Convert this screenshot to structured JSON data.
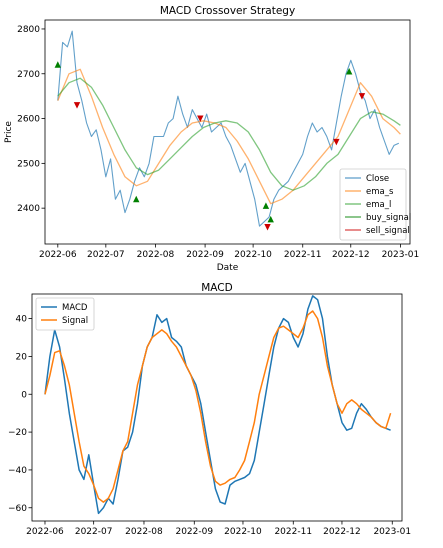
{
  "chart_data": [
    {
      "type": "line",
      "title": "MACD Crossover Strategy",
      "xlabel": "Date",
      "ylabel": "Price",
      "xlim": [
        "2022-05-24",
        "2023-01-07"
      ],
      "ylim": [
        2320,
        2820
      ],
      "x_ticks": [
        "2022-06",
        "2022-07",
        "2022-08",
        "2022-09",
        "2022-10",
        "2022-11",
        "2022-12",
        "2023-01"
      ],
      "y_ticks": [
        2400,
        2500,
        2600,
        2700,
        2800
      ],
      "legend_position": "lower-right",
      "grid": false,
      "colors": {
        "Close": "#1f77b4",
        "ema_s": "#ff7f0e",
        "ema_l": "#2ca02c",
        "buy_signal": "#008000",
        "sell_signal": "#cc0000"
      },
      "series": [
        {
          "name": "Close",
          "x": [
            "2022-06-01",
            "2022-06-04",
            "2022-06-07",
            "2022-06-10",
            "2022-06-13",
            "2022-06-16",
            "2022-06-19",
            "2022-06-22",
            "2022-06-25",
            "2022-06-28",
            "2022-07-01",
            "2022-07-04",
            "2022-07-07",
            "2022-07-10",
            "2022-07-13",
            "2022-07-16",
            "2022-07-19",
            "2022-07-22",
            "2022-07-25",
            "2022-07-28",
            "2022-07-31",
            "2022-08-03",
            "2022-08-06",
            "2022-08-09",
            "2022-08-12",
            "2022-08-15",
            "2022-08-18",
            "2022-08-21",
            "2022-08-24",
            "2022-08-27",
            "2022-08-30",
            "2022-09-02",
            "2022-09-05",
            "2022-09-08",
            "2022-09-11",
            "2022-09-14",
            "2022-09-17",
            "2022-09-20",
            "2022-09-23",
            "2022-09-26",
            "2022-09-29",
            "2022-10-02",
            "2022-10-05",
            "2022-10-08",
            "2022-10-11",
            "2022-10-14",
            "2022-10-17",
            "2022-10-20",
            "2022-10-23",
            "2022-10-26",
            "2022-10-29",
            "2022-11-01",
            "2022-11-04",
            "2022-11-07",
            "2022-11-10",
            "2022-11-13",
            "2022-11-16",
            "2022-11-19",
            "2022-11-22",
            "2022-11-25",
            "2022-11-28",
            "2022-12-01",
            "2022-12-04",
            "2022-12-07",
            "2022-12-10",
            "2022-12-13",
            "2022-12-16",
            "2022-12-19",
            "2022-12-22",
            "2022-12-25",
            "2022-12-28",
            "2022-12-31"
          ],
          "values": [
            2640,
            2770,
            2760,
            2795,
            2680,
            2640,
            2590,
            2560,
            2575,
            2530,
            2470,
            2510,
            2420,
            2440,
            2390,
            2420,
            2460,
            2490,
            2470,
            2500,
            2560,
            2560,
            2560,
            2590,
            2600,
            2650,
            2610,
            2580,
            2620,
            2600,
            2580,
            2610,
            2570,
            2580,
            2590,
            2560,
            2540,
            2510,
            2480,
            2500,
            2460,
            2420,
            2360,
            2370,
            2380,
            2420,
            2440,
            2450,
            2460,
            2480,
            2500,
            2520,
            2560,
            2590,
            2570,
            2580,
            2560,
            2530,
            2590,
            2650,
            2700,
            2730,
            2700,
            2660,
            2640,
            2600,
            2620,
            2580,
            2550,
            2520,
            2540,
            2545
          ]
        },
        {
          "name": "ema_s",
          "x": [
            "2022-06-01",
            "2022-06-08",
            "2022-06-15",
            "2022-06-22",
            "2022-06-29",
            "2022-07-06",
            "2022-07-13",
            "2022-07-20",
            "2022-07-27",
            "2022-08-03",
            "2022-08-10",
            "2022-08-17",
            "2022-08-24",
            "2022-08-31",
            "2022-09-07",
            "2022-09-14",
            "2022-09-21",
            "2022-09-28",
            "2022-10-05",
            "2022-10-12",
            "2022-10-19",
            "2022-10-26",
            "2022-11-02",
            "2022-11-09",
            "2022-11-16",
            "2022-11-23",
            "2022-11-30",
            "2022-12-07",
            "2022-12-14",
            "2022-12-21",
            "2022-12-28",
            "2023-01-01"
          ],
          "values": [
            2640,
            2700,
            2710,
            2650,
            2580,
            2520,
            2470,
            2450,
            2460,
            2500,
            2540,
            2570,
            2590,
            2595,
            2590,
            2580,
            2550,
            2510,
            2460,
            2410,
            2420,
            2440,
            2470,
            2500,
            2530,
            2560,
            2620,
            2680,
            2650,
            2600,
            2580,
            2565
          ]
        },
        {
          "name": "ema_l",
          "x": [
            "2022-06-01",
            "2022-06-08",
            "2022-06-15",
            "2022-06-22",
            "2022-06-29",
            "2022-07-06",
            "2022-07-13",
            "2022-07-20",
            "2022-07-27",
            "2022-08-03",
            "2022-08-10",
            "2022-08-17",
            "2022-08-24",
            "2022-08-31",
            "2022-09-07",
            "2022-09-14",
            "2022-09-21",
            "2022-09-28",
            "2022-10-05",
            "2022-10-12",
            "2022-10-19",
            "2022-10-26",
            "2022-11-02",
            "2022-11-09",
            "2022-11-16",
            "2022-11-23",
            "2022-11-30",
            "2022-12-07",
            "2022-12-14",
            "2022-12-21",
            "2022-12-28",
            "2023-01-01"
          ],
          "values": [
            2650,
            2680,
            2690,
            2670,
            2630,
            2580,
            2530,
            2490,
            2475,
            2485,
            2510,
            2535,
            2560,
            2580,
            2590,
            2595,
            2590,
            2570,
            2530,
            2480,
            2450,
            2440,
            2450,
            2470,
            2500,
            2520,
            2560,
            2600,
            2615,
            2610,
            2595,
            2585
          ]
        }
      ],
      "buy_signals": [
        {
          "x": "2022-06-01",
          "y": 2720
        },
        {
          "x": "2022-07-20",
          "y": 2420
        },
        {
          "x": "2022-10-09",
          "y": 2405
        },
        {
          "x": "2022-10-12",
          "y": 2375
        },
        {
          "x": "2022-11-30",
          "y": 2705
        }
      ],
      "sell_signals": [
        {
          "x": "2022-06-13",
          "y": 2630
        },
        {
          "x": "2022-08-29",
          "y": 2600
        },
        {
          "x": "2022-10-10",
          "y": 2358
        },
        {
          "x": "2022-11-22",
          "y": 2548
        },
        {
          "x": "2022-12-08",
          "y": 2650
        }
      ],
      "legend": [
        "Close",
        "ema_s",
        "ema_l",
        "buy_signal",
        "sell_signal"
      ]
    },
    {
      "type": "line",
      "title": "MACD",
      "xlim": [
        "2022-05-24",
        "2023-01-07"
      ],
      "ylim": [
        -67,
        53
      ],
      "x_ticks": [
        "2022-06",
        "2022-07",
        "2022-08",
        "2022-09",
        "2022-10",
        "2022-11",
        "2022-12",
        "2023-01"
      ],
      "y_ticks": [
        -60,
        -40,
        -20,
        0,
        20,
        40
      ],
      "legend_position": "top-left",
      "grid": false,
      "colors": {
        "MACD": "#1f77b4",
        "Signal": "#ff7f0e"
      },
      "series": [
        {
          "name": "MACD",
          "x": [
            "2022-06-01",
            "2022-06-04",
            "2022-06-07",
            "2022-06-10",
            "2022-06-13",
            "2022-06-16",
            "2022-06-19",
            "2022-06-22",
            "2022-06-25",
            "2022-06-28",
            "2022-07-01",
            "2022-07-04",
            "2022-07-07",
            "2022-07-10",
            "2022-07-13",
            "2022-07-16",
            "2022-07-19",
            "2022-07-22",
            "2022-07-25",
            "2022-07-28",
            "2022-07-31",
            "2022-08-03",
            "2022-08-06",
            "2022-08-09",
            "2022-08-12",
            "2022-08-15",
            "2022-08-18",
            "2022-08-21",
            "2022-08-24",
            "2022-08-27",
            "2022-08-30",
            "2022-09-02",
            "2022-09-05",
            "2022-09-08",
            "2022-09-11",
            "2022-09-14",
            "2022-09-17",
            "2022-09-20",
            "2022-09-23",
            "2022-09-26",
            "2022-09-29",
            "2022-10-02",
            "2022-10-05",
            "2022-10-08",
            "2022-10-11",
            "2022-10-14",
            "2022-10-17",
            "2022-10-20",
            "2022-10-23",
            "2022-10-26",
            "2022-10-29",
            "2022-11-01",
            "2022-11-04",
            "2022-11-07",
            "2022-11-10",
            "2022-11-13",
            "2022-11-16",
            "2022-11-19",
            "2022-11-22",
            "2022-11-25",
            "2022-11-28",
            "2022-12-01",
            "2022-12-04",
            "2022-12-07",
            "2022-12-10",
            "2022-12-13",
            "2022-12-16",
            "2022-12-19",
            "2022-12-22",
            "2022-12-25",
            "2022-12-28",
            "2022-12-31"
          ],
          "values": [
            0,
            20,
            34,
            25,
            8,
            -10,
            -25,
            -40,
            -45,
            -32,
            -48,
            -63,
            -60,
            -55,
            -58,
            -45,
            -30,
            -28,
            -20,
            -5,
            15,
            25,
            30,
            42,
            38,
            40,
            30,
            28,
            25,
            15,
            10,
            5,
            -5,
            -20,
            -35,
            -50,
            -57,
            -58,
            -48,
            -46,
            -45,
            -44,
            -42,
            -35,
            -20,
            -5,
            10,
            25,
            35,
            40,
            38,
            30,
            25,
            32,
            45,
            52,
            50,
            40,
            20,
            5,
            -5,
            -15,
            -19,
            -18,
            -10,
            -5,
            -8,
            -12,
            -15,
            -17,
            -18,
            -19
          ]
        },
        {
          "name": "Signal",
          "x": [
            "2022-06-01",
            "2022-06-04",
            "2022-06-07",
            "2022-06-10",
            "2022-06-13",
            "2022-06-16",
            "2022-06-19",
            "2022-06-22",
            "2022-06-25",
            "2022-06-28",
            "2022-07-01",
            "2022-07-04",
            "2022-07-07",
            "2022-07-10",
            "2022-07-13",
            "2022-07-16",
            "2022-07-19",
            "2022-07-22",
            "2022-07-25",
            "2022-07-28",
            "2022-07-31",
            "2022-08-03",
            "2022-08-06",
            "2022-08-09",
            "2022-08-12",
            "2022-08-15",
            "2022-08-18",
            "2022-08-21",
            "2022-08-24",
            "2022-08-27",
            "2022-08-30",
            "2022-09-02",
            "2022-09-05",
            "2022-09-08",
            "2022-09-11",
            "2022-09-14",
            "2022-09-17",
            "2022-09-20",
            "2022-09-23",
            "2022-09-26",
            "2022-09-29",
            "2022-10-02",
            "2022-10-05",
            "2022-10-08",
            "2022-10-11",
            "2022-10-14",
            "2022-10-17",
            "2022-10-20",
            "2022-10-23",
            "2022-10-26",
            "2022-10-29",
            "2022-11-01",
            "2022-11-04",
            "2022-11-07",
            "2022-11-10",
            "2022-11-13",
            "2022-11-16",
            "2022-11-19",
            "2022-11-22",
            "2022-11-25",
            "2022-11-28",
            "2022-12-01",
            "2022-12-04",
            "2022-12-07",
            "2022-12-10",
            "2022-12-13",
            "2022-12-16",
            "2022-12-19",
            "2022-12-22",
            "2022-12-25",
            "2022-12-28",
            "2022-12-31"
          ],
          "values": [
            0,
            10,
            22,
            23,
            15,
            5,
            -10,
            -25,
            -38,
            -42,
            -48,
            -55,
            -57,
            -55,
            -50,
            -40,
            -30,
            -25,
            -10,
            5,
            15,
            25,
            30,
            32,
            34,
            32,
            28,
            25,
            20,
            15,
            10,
            2,
            -10,
            -25,
            -38,
            -46,
            -48,
            -47,
            -45,
            -44,
            -40,
            -35,
            -25,
            -15,
            0,
            10,
            20,
            30,
            35,
            36,
            34,
            32,
            30,
            35,
            42,
            44,
            40,
            30,
            15,
            5,
            -5,
            -10,
            -5,
            -3,
            -5,
            -8,
            -10,
            -12,
            -15,
            -17,
            -18,
            -10
          ]
        }
      ],
      "legend": [
        "MACD",
        "Signal"
      ]
    }
  ]
}
